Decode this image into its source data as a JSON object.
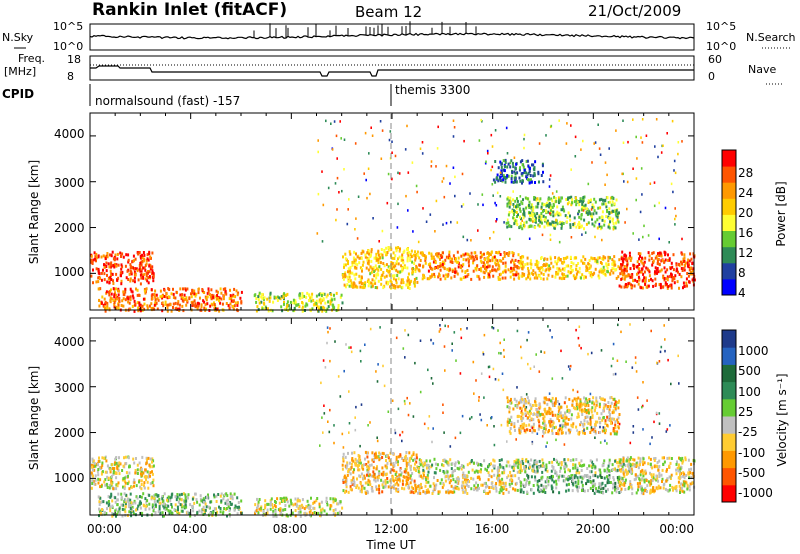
{
  "header": {
    "site": "Rankin Inlet (fitACF)",
    "beam": "Beam 12",
    "date": "21/Oct/2009"
  },
  "noise_panel": {
    "left_label": "N.Sky",
    "left_ticks": [
      "10^5",
      "10^0"
    ],
    "right_label": "N.Search",
    "right_ticks": [
      "10^5",
      "10^0"
    ]
  },
  "freq_panel": {
    "left_label_1": "Freq.",
    "left_label_2": "[MHz]",
    "left_ticks": [
      "18",
      "8"
    ],
    "right_label": "Nave",
    "right_ticks": [
      "60",
      "0"
    ]
  },
  "cpid": {
    "label": "CPID",
    "mode_1": "normalsound (fast) -157",
    "mode_2": "themis 3300"
  },
  "power_panel": {
    "ylabel": "Slant Range [km]",
    "yticks": [
      "4000",
      "3000",
      "2000",
      "1000"
    ],
    "colorbar_label": "Power [dB]",
    "colorbar_ticks": [
      "28",
      "24",
      "20",
      "16",
      "12",
      "8",
      "4"
    ],
    "colors": [
      "#0000ff",
      "#2040a0",
      "#2e8b57",
      "#66cc33",
      "#ffff33",
      "#ffcc00",
      "#ff9900",
      "#ff5500",
      "#ff0000"
    ]
  },
  "velocity_panel": {
    "ylabel": "Slant Range [km]",
    "yticks": [
      "4000",
      "3000",
      "2000",
      "1000"
    ],
    "colorbar_label": "Velocity [m s⁻¹]",
    "colorbar_ticks": [
      "1000",
      "500",
      "100",
      "25",
      "-25",
      "-100",
      "-500",
      "-1000"
    ],
    "colors": [
      "#1e3a8a",
      "#2563c0",
      "#1e6b3a",
      "#2e8b57",
      "#66cc33",
      "#c0c0c0",
      "#ffcc33",
      "#ff9900",
      "#ff5500",
      "#ff0000"
    ]
  },
  "xaxis": {
    "label": "Time UT",
    "ticks": [
      "00:00",
      "04:00",
      "08:00",
      "12:00",
      "16:00",
      "20:00",
      "00:00"
    ]
  },
  "chart_data": [
    {
      "type": "heatmap",
      "title": "",
      "xlabel": "Time UT",
      "ylabel": "Slant Range [km]",
      "x_ticks": [
        "00:00",
        "04:00",
        "08:00",
        "12:00",
        "16:00",
        "20:00",
        "00:00"
      ],
      "xlim_hours": [
        0,
        24
      ],
      "ylim": [
        200,
        4500
      ],
      "y_ticks": [
        1000,
        2000,
        3000,
        4000
      ],
      "colorbar": {
        "label": "Power [dB]",
        "range": [
          0,
          30
        ],
        "ticks": [
          4,
          8,
          12,
          16,
          20,
          24,
          28
        ]
      },
      "regions": [
        {
          "t_start": 0.0,
          "t_end": 2.5,
          "range_km": [
            800,
            1500
          ],
          "value_db": 26
        },
        {
          "t_start": 0.3,
          "t_end": 6.0,
          "range_km": [
            200,
            700
          ],
          "value_db": 24
        },
        {
          "t_start": 6.5,
          "t_end": 10.0,
          "range_km": [
            200,
            600
          ],
          "value_db": 14
        },
        {
          "t_start": 10.0,
          "t_end": 13.0,
          "range_km": [
            700,
            1600
          ],
          "value_db": 18
        },
        {
          "t_start": 13.0,
          "t_end": 17.0,
          "range_km": [
            900,
            1500
          ],
          "value_db": 22
        },
        {
          "t_start": 17.0,
          "t_end": 21.0,
          "range_km": [
            900,
            1400
          ],
          "value_db": 18
        },
        {
          "t_start": 21.0,
          "t_end": 24.0,
          "range_km": [
            700,
            1500
          ],
          "value_db": 26
        },
        {
          "t_start": 16.5,
          "t_end": 21.0,
          "range_km": [
            2000,
            2700
          ],
          "value_db": 12
        },
        {
          "t_start": 16.0,
          "t_end": 18.0,
          "range_km": [
            3000,
            3500
          ],
          "value_db": 6
        }
      ]
    },
    {
      "type": "heatmap",
      "title": "",
      "xlabel": "Time UT",
      "ylabel": "Slant Range [km]",
      "x_ticks": [
        "00:00",
        "04:00",
        "08:00",
        "12:00",
        "16:00",
        "20:00",
        "00:00"
      ],
      "xlim_hours": [
        0,
        24
      ],
      "ylim": [
        200,
        4500
      ],
      "y_ticks": [
        1000,
        2000,
        3000,
        4000
      ],
      "colorbar": {
        "label": "Velocity [m s⁻¹]",
        "range": [
          -1000,
          1000
        ],
        "ticks": [
          1000,
          500,
          100,
          25,
          -25,
          -100,
          -500,
          -1000
        ]
      },
      "regions": [
        {
          "t_start": 0.0,
          "t_end": 2.5,
          "range_km": [
            800,
            1500
          ],
          "value_ms": -200
        },
        {
          "t_start": 0.3,
          "t_end": 6.0,
          "range_km": [
            200,
            700
          ],
          "value_ms": 50
        },
        {
          "t_start": 6.5,
          "t_end": 10.0,
          "range_km": [
            200,
            600
          ],
          "value_ms": -150
        },
        {
          "t_start": 10.0,
          "t_end": 13.0,
          "range_km": [
            700,
            1600
          ],
          "value_ms": -300
        },
        {
          "t_start": 13.0,
          "t_end": 21.5,
          "range_km": [
            1150,
            1450
          ],
          "value_ms": 0
        },
        {
          "t_start": 13.0,
          "t_end": 17.0,
          "range_km": [
            700,
            1100
          ],
          "value_ms": -250
        },
        {
          "t_start": 17.0,
          "t_end": 21.0,
          "range_km": [
            700,
            1100
          ],
          "value_ms": 150
        },
        {
          "t_start": 21.0,
          "t_end": 24.0,
          "range_km": [
            700,
            1500
          ],
          "value_ms": -200
        },
        {
          "t_start": 16.5,
          "t_end": 21.0,
          "range_km": [
            2000,
            2800
          ],
          "value_ms": -300
        }
      ]
    }
  ]
}
